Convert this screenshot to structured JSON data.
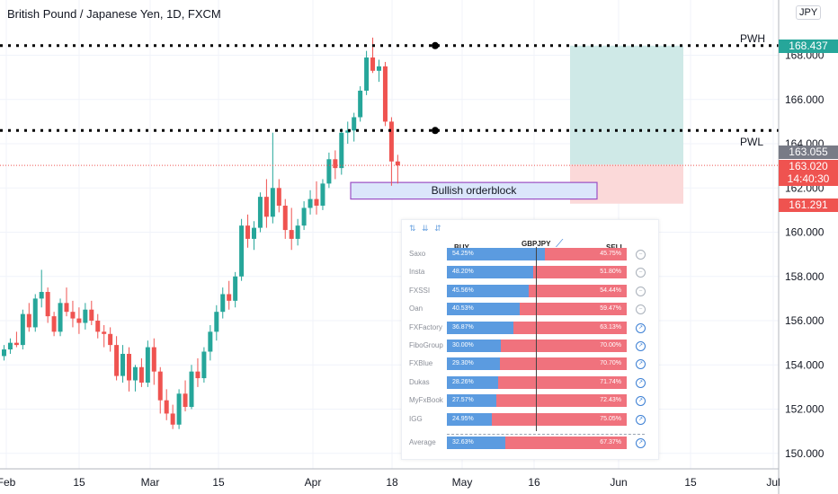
{
  "header": {
    "title": "British Pound / Japanese Yen, 1D, FXCM",
    "currency": "JPY"
  },
  "chart_data": {
    "type": "candlestick",
    "y_axis": {
      "ticks": [
        "150.000",
        "152.000",
        "154.000",
        "156.000",
        "158.000",
        "160.000",
        "162.000",
        "164.000",
        "166.000",
        "168.000"
      ],
      "ylim": [
        149.3,
        170.5
      ]
    },
    "x_axis": {
      "ticks": [
        "Feb",
        "15",
        "Mar",
        "15",
        "Apr",
        "18",
        "May",
        "16",
        "Jun",
        "15",
        "Jul"
      ]
    },
    "candles": [
      [
        154.4,
        154.9,
        154.2,
        154.7
      ],
      [
        154.7,
        155.2,
        154.5,
        155.0
      ],
      [
        155.0,
        155.5,
        154.8,
        154.9
      ],
      [
        154.9,
        156.5,
        154.7,
        156.3
      ],
      [
        156.3,
        156.8,
        155.5,
        155.7
      ],
      [
        155.7,
        157.2,
        155.5,
        157.0
      ],
      [
        157.0,
        158.3,
        156.6,
        157.3
      ],
      [
        157.3,
        157.5,
        155.9,
        156.2
      ],
      [
        156.2,
        156.4,
        155.3,
        155.5
      ],
      [
        155.5,
        157.0,
        155.3,
        156.8
      ],
      [
        156.8,
        157.5,
        156.2,
        156.4
      ],
      [
        156.4,
        156.9,
        155.7,
        156.1
      ],
      [
        156.1,
        156.6,
        155.4,
        155.9
      ],
      [
        155.9,
        156.8,
        155.6,
        156.5
      ],
      [
        156.5,
        156.9,
        155.8,
        156.0
      ],
      [
        156.0,
        156.3,
        155.2,
        155.5
      ],
      [
        155.5,
        155.8,
        154.8,
        155.4
      ],
      [
        155.4,
        155.7,
        154.6,
        154.9
      ],
      [
        154.9,
        155.3,
        153.3,
        153.5
      ],
      [
        153.5,
        154.9,
        153.2,
        154.5
      ],
      [
        154.5,
        154.8,
        152.8,
        153.3
      ],
      [
        153.3,
        154.0,
        152.8,
        153.9
      ],
      [
        153.9,
        154.3,
        153.0,
        153.2
      ],
      [
        153.2,
        155.1,
        153.0,
        154.8
      ],
      [
        154.8,
        155.2,
        153.1,
        153.7
      ],
      [
        153.7,
        153.9,
        151.8,
        152.4
      ],
      [
        152.4,
        152.9,
        151.5,
        151.8
      ],
      [
        151.8,
        152.2,
        151.1,
        151.3
      ],
      [
        151.3,
        152.9,
        151.1,
        152.7
      ],
      [
        152.7,
        153.3,
        151.9,
        152.1
      ],
      [
        152.1,
        154.0,
        152.0,
        153.7
      ],
      [
        153.7,
        154.3,
        153.0,
        153.4
      ],
      [
        153.4,
        154.8,
        153.2,
        154.6
      ],
      [
        154.6,
        155.8,
        154.2,
        155.5
      ],
      [
        155.5,
        156.7,
        155.1,
        156.4
      ],
      [
        156.4,
        157.5,
        156.1,
        157.2
      ],
      [
        157.2,
        157.8,
        156.5,
        156.9
      ],
      [
        156.9,
        158.2,
        156.6,
        158.0
      ],
      [
        158.0,
        160.6,
        157.8,
        160.3
      ],
      [
        160.3,
        160.8,
        159.3,
        159.7
      ],
      [
        159.7,
        160.5,
        159.2,
        160.2
      ],
      [
        160.2,
        161.8,
        160.0,
        161.6
      ],
      [
        161.6,
        162.4,
        160.2,
        160.7
      ],
      [
        160.7,
        164.5,
        160.4,
        162.0
      ],
      [
        162.0,
        162.4,
        160.9,
        161.2
      ],
      [
        161.2,
        161.5,
        159.7,
        160.1
      ],
      [
        160.1,
        161.1,
        159.2,
        159.7
      ],
      [
        159.7,
        160.6,
        159.4,
        160.3
      ],
      [
        160.3,
        161.4,
        160.1,
        161.1
      ],
      [
        161.1,
        161.9,
        160.8,
        161.5
      ],
      [
        161.5,
        162.3,
        160.8,
        161.2
      ],
      [
        161.2,
        162.4,
        161.0,
        162.2
      ],
      [
        162.2,
        163.6,
        162.0,
        163.3
      ],
      [
        163.3,
        163.7,
        162.4,
        162.9
      ],
      [
        162.9,
        164.7,
        162.6,
        164.5
      ],
      [
        164.5,
        165.0,
        164.0,
        164.6
      ],
      [
        164.6,
        165.4,
        164.1,
        165.2
      ],
      [
        165.2,
        166.6,
        165.0,
        166.4
      ],
      [
        166.4,
        168.2,
        166.2,
        167.9
      ],
      [
        167.9,
        168.8,
        167.2,
        167.3
      ],
      [
        167.3,
        167.8,
        166.8,
        167.5
      ],
      [
        167.5,
        167.7,
        164.8,
        165.0
      ],
      [
        165.0,
        165.2,
        162.1,
        163.2
      ],
      [
        163.2,
        163.5,
        162.2,
        163.02
      ]
    ],
    "levels": {
      "PWH": 168.437,
      "PWL": 164.6,
      "last": 163.02
    },
    "zones": {
      "tp_top": 168.437,
      "entry": 163.055,
      "sl_bottom": 161.291,
      "orderblock_top": 162.25,
      "orderblock_bottom": 161.5
    },
    "annotations": {
      "pwh_label": "PWH",
      "pwl_label": "PWL",
      "orderblock_label": "Bullish orderblock"
    },
    "price_tags": {
      "pwh": "168.437",
      "entry": "163.055",
      "last": "163.020",
      "countdown": "14:40:30",
      "stop": "161.291"
    },
    "colors": {
      "up": "#26a69a",
      "down": "#ef5350",
      "tp_zone": "#cfe9e7",
      "sl_zone": "#fbd9d9",
      "orderblock_fill": "#dbe6fb",
      "orderblock_border": "#9b4fc4",
      "last_tag": "#ef5350",
      "entry_tag": "#787b86"
    }
  },
  "sentiment_panel": {
    "buy_header": "BUY",
    "symbol": "GBPJPY",
    "sell_header": "SELL",
    "rows": [
      {
        "name": "Saxo",
        "buy": "54.25%",
        "sell": "45.75%",
        "buy_frac": 0.5425,
        "active": false
      },
      {
        "name": "Insta",
        "buy": "48.20%",
        "sell": "51.80%",
        "buy_frac": 0.482,
        "active": false
      },
      {
        "name": "FXSSI",
        "buy": "45.56%",
        "sell": "54.44%",
        "buy_frac": 0.4556,
        "active": false
      },
      {
        "name": "Oan",
        "buy": "40.53%",
        "sell": "59.47%",
        "buy_frac": 0.4053,
        "active": false
      },
      {
        "name": "FXFactory",
        "buy": "36.87%",
        "sell": "63.13%",
        "buy_frac": 0.3687,
        "active": true
      },
      {
        "name": "FiboGroup",
        "buy": "30.00%",
        "sell": "70.00%",
        "buy_frac": 0.3,
        "active": true
      },
      {
        "name": "FXBlue",
        "buy": "29.30%",
        "sell": "70.70%",
        "buy_frac": 0.293,
        "active": true
      },
      {
        "name": "Dukas",
        "buy": "28.26%",
        "sell": "71.74%",
        "buy_frac": 0.2826,
        "active": true
      },
      {
        "name": "MyFxBook",
        "buy": "27.57%",
        "sell": "72.43%",
        "buy_frac": 0.2757,
        "active": true
      },
      {
        "name": "IGG",
        "buy": "24.95%",
        "sell": "75.05%",
        "buy_frac": 0.2495,
        "active": true
      }
    ],
    "average": {
      "name": "Average",
      "buy": "32.63%",
      "sell": "67.37%",
      "buy_frac": 0.3263,
      "active": true
    }
  }
}
